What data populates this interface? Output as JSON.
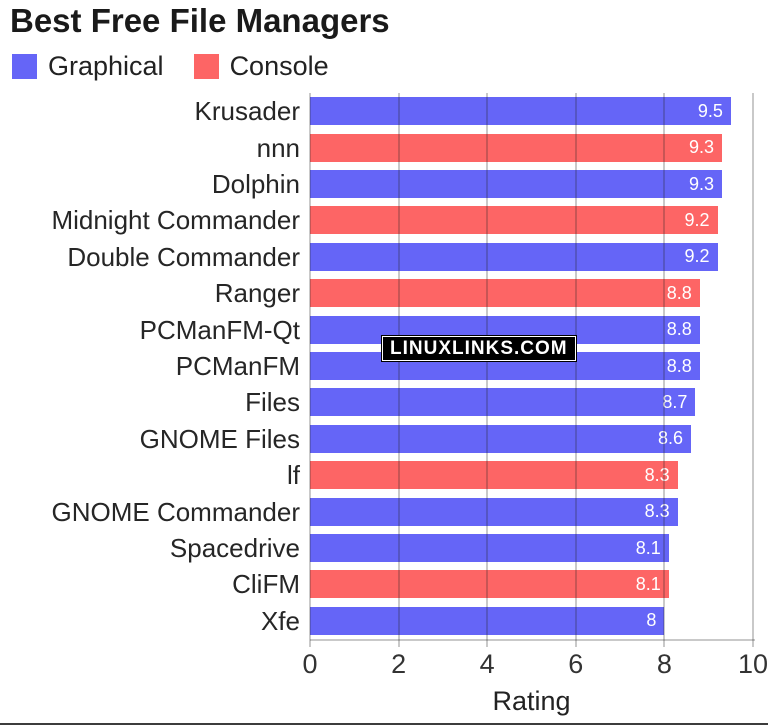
{
  "title": "Best Free File Managers",
  "legend": [
    {
      "label": "Graphical",
      "color": "#6565f7"
    },
    {
      "label": "Console",
      "color": "#fd6565"
    }
  ],
  "watermark": "LINUXLINKS.COM",
  "chart_data": {
    "type": "bar",
    "orientation": "horizontal",
    "title": "Best Free File Managers",
    "xlabel": "Rating",
    "xlim": [
      0,
      10
    ],
    "xticks": [
      "0",
      "2",
      "4",
      "6",
      "8",
      "10"
    ],
    "grid": true,
    "legend_position": "top-left",
    "series_colors": {
      "Graphical": "#6565f7",
      "Console": "#fd6565"
    },
    "items": [
      {
        "label": "Krusader",
        "value": 9.5,
        "display": "9.5",
        "series": "Graphical"
      },
      {
        "label": "nnn",
        "value": 9.3,
        "display": "9.3",
        "series": "Console"
      },
      {
        "label": "Dolphin",
        "value": 9.3,
        "display": "9.3",
        "series": "Graphical"
      },
      {
        "label": "Midnight Commander",
        "value": 9.2,
        "display": "9.2",
        "series": "Console"
      },
      {
        "label": "Double Commander",
        "value": 9.2,
        "display": "9.2",
        "series": "Graphical"
      },
      {
        "label": "Ranger",
        "value": 8.8,
        "display": "8.8",
        "series": "Console"
      },
      {
        "label": "PCManFM-Qt",
        "value": 8.8,
        "display": "8.8",
        "series": "Graphical"
      },
      {
        "label": "PCManFM",
        "value": 8.8,
        "display": "8.8",
        "series": "Graphical"
      },
      {
        "label": "Files",
        "value": 8.7,
        "display": "8.7",
        "series": "Graphical"
      },
      {
        "label": "GNOME Files",
        "value": 8.6,
        "display": "8.6",
        "series": "Graphical"
      },
      {
        "label": "lf",
        "value": 8.3,
        "display": "8.3",
        "series": "Console"
      },
      {
        "label": "GNOME Commander",
        "value": 8.3,
        "display": "8.3",
        "series": "Graphical"
      },
      {
        "label": "Spacedrive",
        "value": 8.1,
        "display": "8.1",
        "series": "Graphical"
      },
      {
        "label": "CliFM",
        "value": 8.1,
        "display": "8.1",
        "series": "Console"
      },
      {
        "label": "Xfe",
        "value": 8,
        "display": "8",
        "series": "Graphical"
      }
    ]
  }
}
